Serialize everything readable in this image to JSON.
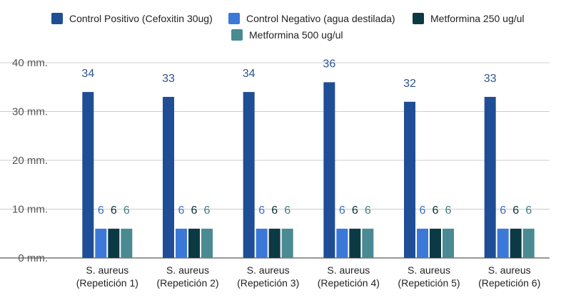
{
  "chart_data": {
    "type": "bar",
    "categories": [
      [
        "S. aureus",
        "(Repetición 1)"
      ],
      [
        "S. aureus",
        "(Repetición 2)"
      ],
      [
        "S. aureus",
        "(Repetición 3)"
      ],
      [
        "S. aureus",
        "(Repetición 4)"
      ],
      [
        "S. aureus",
        "(Repetición 5)"
      ],
      [
        "S. aureus",
        "(Repetición 6)"
      ]
    ],
    "series": [
      {
        "name": "Control Positivo (Cefoxitin 30ug)",
        "color": "#1f4e96",
        "label_color": "#2b5590",
        "values": [
          34,
          33,
          34,
          36,
          32,
          33
        ]
      },
      {
        "name": "Control Negativo (agua destilada)",
        "color": "#3b78d8",
        "label_color": "#3b6fc4",
        "values": [
          6,
          6,
          6,
          6,
          6,
          6
        ]
      },
      {
        "name": "Metformina 250 ug/ul",
        "color": "#0c3a44",
        "label_color": "#0c2f38",
        "values": [
          6,
          6,
          6,
          6,
          6,
          6
        ]
      },
      {
        "name": "Metformina 500 ug/ul",
        "color": "#4a8a92",
        "label_color": "#3f7f88",
        "values": [
          6,
          6,
          6,
          6,
          6,
          6
        ]
      }
    ],
    "y_ticks": [
      "0 mm.",
      "10 mm.",
      "20 mm.",
      "30 mm.",
      "40 mm."
    ],
    "ylim": [
      0,
      40
    ],
    "grid": true,
    "legend_position": "top"
  }
}
